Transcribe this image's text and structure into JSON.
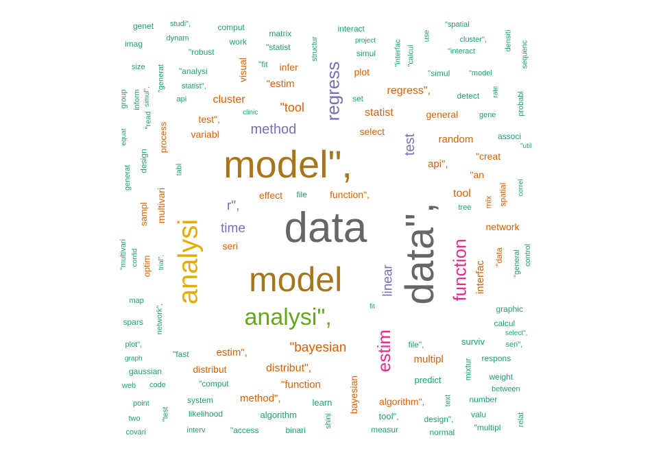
{
  "words": [
    {
      "text": "model\",",
      "color": "#a6761d"
    },
    {
      "text": "data",
      "color": "#666666"
    },
    {
      "text": "data\",",
      "color": "#666666"
    },
    {
      "text": "model",
      "color": "#a6761d"
    },
    {
      "text": "analysi",
      "color": "#e6ab02"
    },
    {
      "text": "analysi\",",
      "color": "#66a61e"
    },
    {
      "text": "regress",
      "color": "#7570b3"
    },
    {
      "text": "function",
      "color": "#e7298a"
    },
    {
      "text": "estim",
      "color": "#e7298a"
    },
    {
      "text": "method",
      "color": "#7570b3"
    },
    {
      "text": "\"bayesian",
      "color": "#d95f02"
    },
    {
      "text": "r\",",
      "color": "#7570b3"
    },
    {
      "text": "time",
      "color": "#7570b3"
    },
    {
      "text": "linear",
      "color": "#7570b3"
    },
    {
      "text": "test",
      "color": "#7570b3"
    },
    {
      "text": "\"tool",
      "color": "#d95f02"
    },
    {
      "text": "cluster",
      "color": "#d95f02"
    },
    {
      "text": "statist",
      "color": "#d95f02"
    },
    {
      "text": "regress\",",
      "color": "#d95f02"
    },
    {
      "text": "distribut\",",
      "color": "#d95f02"
    },
    {
      "text": "tool",
      "color": "#d95f02"
    },
    {
      "text": "random",
      "color": "#d95f02"
    },
    {
      "text": "interfac",
      "color": "#d95f02"
    },
    {
      "text": "\"estim",
      "color": "#d95f02"
    },
    {
      "text": "estim\",",
      "color": "#d95f02"
    },
    {
      "text": "api\",",
      "color": "#d95f02"
    },
    {
      "text": "multipl",
      "color": "#d95f02"
    },
    {
      "text": "method\",",
      "color": "#d95f02"
    },
    {
      "text": "general",
      "color": "#d95f02"
    },
    {
      "text": "function\",",
      "color": "#d95f02"
    },
    {
      "text": "\"function",
      "color": "#d95f02"
    },
    {
      "text": "network",
      "color": "#d95f02"
    },
    {
      "text": "\"creat",
      "color": "#d95f02"
    },
    {
      "text": "distribut",
      "color": "#d95f02"
    },
    {
      "text": "effect",
      "color": "#d95f02"
    },
    {
      "text": "plot",
      "color": "#d95f02"
    },
    {
      "text": "seri",
      "color": "#d95f02"
    },
    {
      "text": "variabl",
      "color": "#d95f02"
    },
    {
      "text": "test\",",
      "color": "#d95f02"
    },
    {
      "text": "select",
      "color": "#d95f02"
    },
    {
      "text": "infer",
      "color": "#d95f02"
    },
    {
      "text": "\"an",
      "color": "#d95f02"
    },
    {
      "text": "algorithm\",",
      "color": "#d95f02"
    },
    {
      "text": "bayesian",
      "color": "#d95f02"
    },
    {
      "text": "visual",
      "color": "#d95f02"
    },
    {
      "text": "multivari",
      "color": "#d95f02"
    },
    {
      "text": "sampl",
      "color": "#d95f02"
    },
    {
      "text": "process",
      "color": "#d95f02"
    },
    {
      "text": "optim",
      "color": "#d95f02"
    },
    {
      "text": "spatial",
      "color": "#d95f02"
    },
    {
      "text": "mix",
      "color": "#d95f02"
    },
    {
      "text": "\"data",
      "color": "#d95f02"
    },
    {
      "text": "genet",
      "color": "#1b9e77"
    },
    {
      "text": "imag",
      "color": "#1b9e77"
    },
    {
      "text": "size",
      "color": "#1b9e77"
    },
    {
      "text": "group",
      "color": "#1b9e77"
    },
    {
      "text": "inform",
      "color": "#1b9e77"
    },
    {
      "text": "simul\",",
      "color": "#1b9e77"
    },
    {
      "text": "\"generat",
      "color": "#1b9e77"
    },
    {
      "text": "\"read",
      "color": "#1b9e77"
    },
    {
      "text": "equat",
      "color": "#1b9e77"
    },
    {
      "text": "design",
      "color": "#1b9e77"
    },
    {
      "text": "generat",
      "color": "#1b9e77"
    },
    {
      "text": "tabl",
      "color": "#1b9e77"
    },
    {
      "text": "\"multivari",
      "color": "#1b9e77"
    },
    {
      "text": "confid",
      "color": "#1b9e77"
    },
    {
      "text": "trial\",",
      "color": "#1b9e77"
    },
    {
      "text": "map",
      "color": "#1b9e77"
    },
    {
      "text": "network\",",
      "color": "#1b9e77"
    },
    {
      "text": "spars",
      "color": "#1b9e77"
    },
    {
      "text": "plot\",",
      "color": "#1b9e77"
    },
    {
      "text": "graph",
      "color": "#1b9e77"
    },
    {
      "text": "gaussian",
      "color": "#1b9e77"
    },
    {
      "text": "web",
      "color": "#1b9e77"
    },
    {
      "text": "code",
      "color": "#1b9e77"
    },
    {
      "text": "point",
      "color": "#1b9e77"
    },
    {
      "text": "two",
      "color": "#1b9e77"
    },
    {
      "text": "covari",
      "color": "#1b9e77"
    },
    {
      "text": "\"test",
      "color": "#1b9e77"
    },
    {
      "text": "studi\",",
      "color": "#1b9e77"
    },
    {
      "text": "dynam",
      "color": "#1b9e77"
    },
    {
      "text": "comput",
      "color": "#1b9e77"
    },
    {
      "text": "work",
      "color": "#1b9e77"
    },
    {
      "text": "\"robust",
      "color": "#1b9e77"
    },
    {
      "text": "\"analysi",
      "color": "#1b9e77"
    },
    {
      "text": "statist\",",
      "color": "#1b9e77"
    },
    {
      "text": "api",
      "color": "#1b9e77"
    },
    {
      "text": "matrix",
      "color": "#1b9e77"
    },
    {
      "text": "\"statist",
      "color": "#1b9e77"
    },
    {
      "text": "\"fit",
      "color": "#1b9e77"
    },
    {
      "text": "structur",
      "color": "#1b9e77"
    },
    {
      "text": "interact",
      "color": "#1b9e77"
    },
    {
      "text": "project",
      "color": "#1b9e77"
    },
    {
      "text": "simul",
      "color": "#1b9e77"
    },
    {
      "text": "\"interfac",
      "color": "#1b9e77"
    },
    {
      "text": "\"calcul",
      "color": "#1b9e77"
    },
    {
      "text": "use",
      "color": "#1b9e77"
    },
    {
      "text": "\"spatial",
      "color": "#1b9e77"
    },
    {
      "text": "cluster\",",
      "color": "#1b9e77"
    },
    {
      "text": "\"interact",
      "color": "#1b9e77"
    },
    {
      "text": "densiti",
      "color": "#1b9e77"
    },
    {
      "text": "sequenc",
      "color": "#1b9e77"
    },
    {
      "text": "\"simul",
      "color": "#1b9e77"
    },
    {
      "text": "\"model",
      "color": "#1b9e77"
    },
    {
      "text": "rate",
      "color": "#1b9e77"
    },
    {
      "text": "probabl",
      "color": "#1b9e77"
    },
    {
      "text": "detect",
      "color": "#1b9e77"
    },
    {
      "text": "gene",
      "color": "#1b9e77"
    },
    {
      "text": "set",
      "color": "#1b9e77"
    },
    {
      "text": "clinic",
      "color": "#1b9e77"
    },
    {
      "text": "associ",
      "color": "#1b9e77"
    },
    {
      "text": "\"util",
      "color": "#1b9e77"
    },
    {
      "text": "correl",
      "color": "#1b9e77"
    },
    {
      "text": "tree",
      "color": "#1b9e77"
    },
    {
      "text": "file",
      "color": "#1b9e77"
    },
    {
      "text": "fit",
      "color": "#1b9e77"
    },
    {
      "text": "control",
      "color": "#1b9e77"
    },
    {
      "text": "\"general",
      "color": "#1b9e77"
    },
    {
      "text": "graphic",
      "color": "#1b9e77"
    },
    {
      "text": "calcul",
      "color": "#1b9e77"
    },
    {
      "text": "select\",",
      "color": "#1b9e77"
    },
    {
      "text": "seri\",",
      "color": "#1b9e77"
    },
    {
      "text": "surviv",
      "color": "#1b9e77"
    },
    {
      "text": "file\",",
      "color": "#1b9e77"
    },
    {
      "text": "respons",
      "color": "#1b9e77"
    },
    {
      "text": "mixtur",
      "color": "#1b9e77"
    },
    {
      "text": "weight",
      "color": "#1b9e77"
    },
    {
      "text": "between",
      "color": "#1b9e77"
    },
    {
      "text": "predict",
      "color": "#1b9e77"
    },
    {
      "text": "number",
      "color": "#1b9e77"
    },
    {
      "text": "valu",
      "color": "#1b9e77"
    },
    {
      "text": "relat",
      "color": "#1b9e77"
    },
    {
      "text": "\"multipl",
      "color": "#1b9e77"
    },
    {
      "text": "text",
      "color": "#1b9e77"
    },
    {
      "text": "design\",",
      "color": "#1b9e77"
    },
    {
      "text": "normal",
      "color": "#1b9e77"
    },
    {
      "text": "tool\",",
      "color": "#1b9e77"
    },
    {
      "text": "measur",
      "color": "#1b9e77"
    },
    {
      "text": "shini",
      "color": "#1b9e77"
    },
    {
      "text": "learn",
      "color": "#1b9e77"
    },
    {
      "text": "algorithm",
      "color": "#1b9e77"
    },
    {
      "text": "binari",
      "color": "#1b9e77"
    },
    {
      "text": "\"access",
      "color": "#1b9e77"
    },
    {
      "text": "interv",
      "color": "#1b9e77"
    },
    {
      "text": "likelihood",
      "color": "#1b9e77"
    },
    {
      "text": "system",
      "color": "#1b9e77"
    },
    {
      "text": "\"comput",
      "color": "#1b9e77"
    },
    {
      "text": "\"fast",
      "color": "#1b9e77"
    }
  ]
}
